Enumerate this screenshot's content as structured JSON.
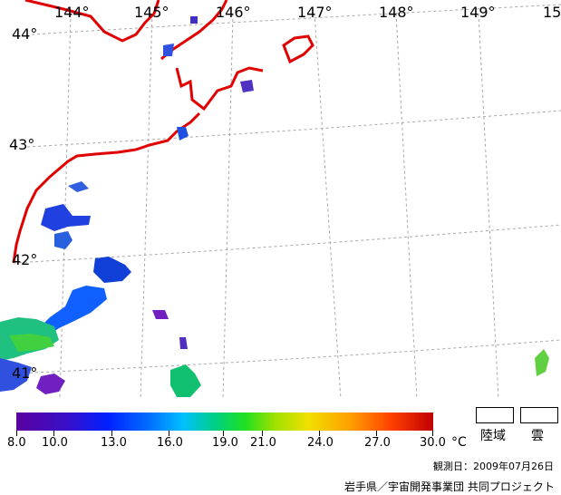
{
  "map": {
    "lon_labels": [
      "144°",
      "145°",
      "146°",
      "147°",
      "148°",
      "149°",
      "15"
    ],
    "lat_labels": [
      "44°",
      "43°",
      "42°",
      "41°"
    ]
  },
  "legend": {
    "tick_labels": [
      "8.0",
      "10.0",
      "13.0",
      "16.0",
      "19.0",
      "21.0",
      "24.0",
      "27.0",
      "30.0"
    ],
    "unit": "°C",
    "land_label": "陸域",
    "cloud_label": "雲"
  },
  "observation_date": "観測日：2009年07月26日",
  "credit": "岩手県／宇宙開発事業団 共同プロジェクト"
}
